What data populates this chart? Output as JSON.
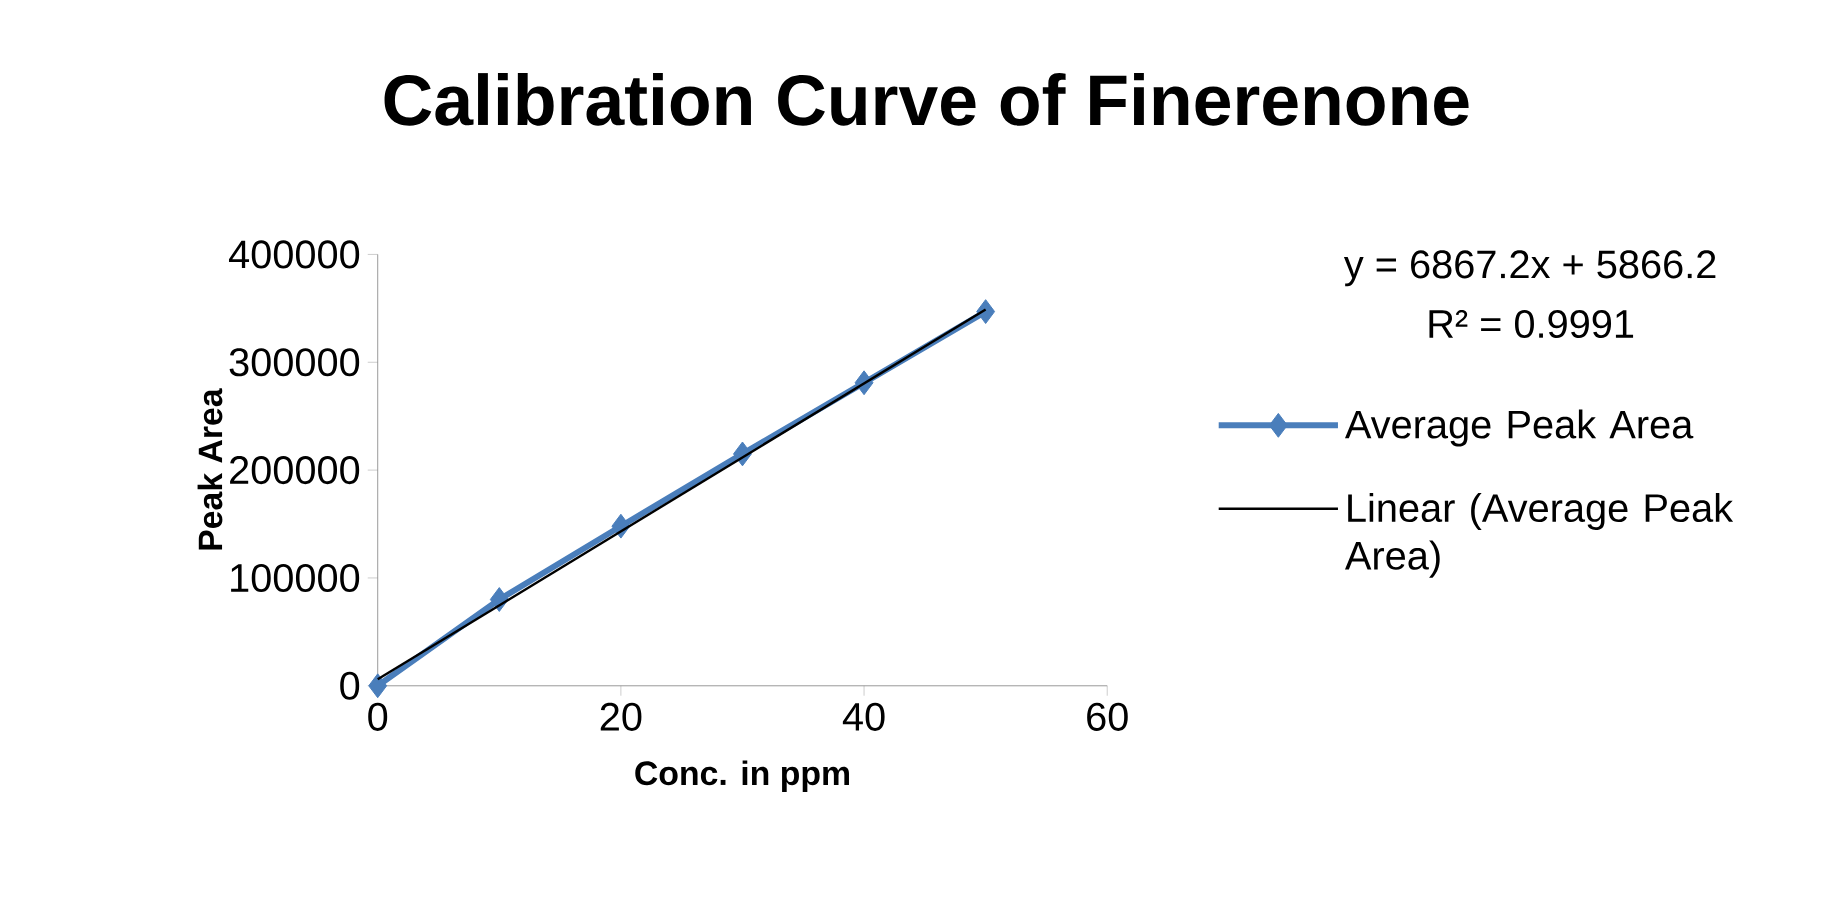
{
  "chart_data": {
    "type": "line",
    "title": "Calibration Curve of Finerenone",
    "xlabel": "Conc. in ppm",
    "ylabel": "Peak Area",
    "x": [
      0,
      10,
      20,
      30,
      40,
      50
    ],
    "series": [
      {
        "name": "Average Peak Area",
        "color": "#4a7ebb",
        "values": [
          0,
          80000,
          148000,
          215000,
          281000,
          347000
        ],
        "marker": "diamond",
        "line_style": "solid"
      },
      {
        "name": "Linear (Average Peak Area)",
        "type": "line",
        "color": "#000000",
        "x": [
          0,
          50
        ],
        "values": [
          6000,
          349000
        ],
        "marker": "none",
        "line_style": "solid"
      }
    ],
    "annotations": [
      "y = 6867.2x + 5866.2",
      "R² = 0.9991"
    ],
    "xlim": [
      0,
      60
    ],
    "xticks": [
      0,
      20,
      40,
      60
    ],
    "ylim": [
      0,
      400000
    ],
    "yticks": [
      0,
      100000,
      200000,
      300000,
      400000
    ],
    "grid": false,
    "legend": "right"
  }
}
